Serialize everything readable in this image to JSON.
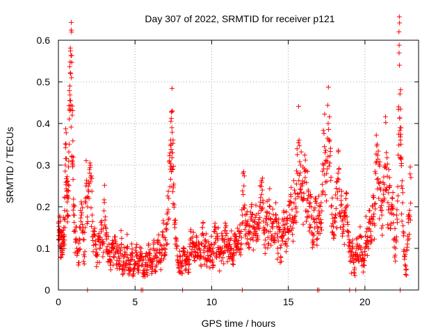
{
  "chart_data": {
    "type": "scatter",
    "title": "Day 307 of 2022, SRMTID for receiver p121",
    "xlabel": "GPS time / hours",
    "ylabel": "SRMTID / TECUs",
    "xlim": [
      0,
      23.5
    ],
    "ylim": [
      0,
      0.6
    ],
    "x_ticks": [
      0,
      5,
      10,
      15,
      20
    ],
    "y_ticks": [
      0,
      0.1,
      0.2,
      0.3,
      0.4,
      0.5,
      0.6
    ],
    "x_tick_labels": [
      "0",
      "5",
      "10",
      "15",
      "20"
    ],
    "y_tick_labels": [
      "0",
      "0.1",
      "0.2",
      "0.3",
      "0.4",
      "0.5",
      "0.6"
    ],
    "grid": true,
    "marker": "plus",
    "color": "#ff0000",
    "series": [
      {
        "name": "SRMTID",
        "note": "dense scatter of ~2000 plus markers sampled every ~30 s; values below are a representative subset read from the plot",
        "points": [
          [
            0.0,
            0.16
          ],
          [
            0.05,
            0.12
          ],
          [
            0.1,
            0.14
          ],
          [
            0.15,
            0.1
          ],
          [
            0.2,
            0.13
          ],
          [
            0.25,
            0.09
          ],
          [
            0.3,
            0.11
          ],
          [
            0.35,
            0.15
          ],
          [
            0.4,
            0.12
          ],
          [
            0.45,
            0.3
          ],
          [
            0.5,
            0.35
          ],
          [
            0.55,
            0.26
          ],
          [
            0.6,
            0.18
          ],
          [
            0.65,
            0.22
          ],
          [
            0.7,
            0.35
          ],
          [
            0.75,
            0.49
          ],
          [
            0.8,
            0.52
          ],
          [
            0.85,
            0.51
          ],
          [
            0.9,
            0.42
          ],
          [
            0.95,
            0.3
          ],
          [
            1.0,
            0.2
          ],
          [
            1.1,
            0.14
          ],
          [
            1.2,
            0.1
          ],
          [
            1.3,
            0.06
          ],
          [
            1.4,
            0.12
          ],
          [
            1.5,
            0.18
          ],
          [
            1.6,
            0.14
          ],
          [
            1.7,
            0.08
          ],
          [
            1.8,
            0.25
          ],
          [
            1.9,
            0.2
          ],
          [
            2.0,
            0.22
          ],
          [
            2.1,
            0.26
          ],
          [
            2.2,
            0.18
          ],
          [
            2.3,
            0.13
          ],
          [
            2.4,
            0.11
          ],
          [
            2.5,
            0.09
          ],
          [
            2.6,
            0.12
          ],
          [
            2.7,
            0.1
          ],
          [
            2.8,
            0.14
          ],
          [
            2.9,
            0.08
          ],
          [
            3.0,
            0.21
          ],
          [
            3.1,
            0.13
          ],
          [
            3.2,
            0.09
          ],
          [
            3.3,
            0.11
          ],
          [
            3.4,
            0.07
          ],
          [
            3.5,
            0.1
          ],
          [
            3.6,
            0.08
          ],
          [
            3.7,
            0.12
          ],
          [
            3.8,
            0.06
          ],
          [
            3.9,
            0.09
          ],
          [
            4.0,
            0.07
          ],
          [
            4.1,
            0.11
          ],
          [
            4.2,
            0.05
          ],
          [
            4.3,
            0.08
          ],
          [
            4.4,
            0.06
          ],
          [
            4.5,
            0.1
          ],
          [
            4.6,
            0.04
          ],
          [
            4.7,
            0.07
          ],
          [
            4.8,
            0.09
          ],
          [
            4.9,
            0.05
          ],
          [
            5.0,
            0.06
          ],
          [
            5.1,
            0.08
          ],
          [
            5.2,
            0.05
          ],
          [
            5.3,
            0.07
          ],
          [
            5.4,
            0.1
          ],
          [
            5.5,
            0.06
          ],
          [
            5.6,
            0.04
          ],
          [
            5.7,
            0.08
          ],
          [
            5.8,
            0.06
          ],
          [
            5.9,
            0.09
          ],
          [
            6.0,
            0.07
          ],
          [
            6.1,
            0.05
          ],
          [
            6.2,
            0.1
          ],
          [
            6.3,
            0.08
          ],
          [
            6.4,
            0.06
          ],
          [
            6.5,
            0.12
          ],
          [
            6.6,
            0.09
          ],
          [
            6.7,
            0.07
          ],
          [
            6.8,
            0.14
          ],
          [
            6.9,
            0.1
          ],
          [
            7.0,
            0.12
          ],
          [
            7.1,
            0.16
          ],
          [
            7.2,
            0.22
          ],
          [
            7.3,
            0.29
          ],
          [
            7.35,
            0.35
          ],
          [
            7.4,
            0.39
          ],
          [
            7.45,
            0.33
          ],
          [
            7.5,
            0.25
          ],
          [
            7.6,
            0.15
          ],
          [
            7.7,
            0.1
          ],
          [
            7.8,
            0.06
          ],
          [
            7.9,
            0.08
          ],
          [
            8.0,
            0.04
          ],
          [
            8.1,
            0.07
          ],
          [
            8.2,
            0.1
          ],
          [
            8.3,
            0.06
          ],
          [
            8.4,
            0.08
          ],
          [
            8.5,
            0.05
          ],
          [
            8.6,
            0.12
          ],
          [
            8.7,
            0.09
          ],
          [
            8.8,
            0.11
          ],
          [
            8.9,
            0.07
          ],
          [
            9.0,
            0.13
          ],
          [
            9.1,
            0.08
          ],
          [
            9.2,
            0.1
          ],
          [
            9.3,
            0.06
          ],
          [
            9.4,
            0.15
          ],
          [
            9.5,
            0.09
          ],
          [
            9.6,
            0.12
          ],
          [
            9.7,
            0.07
          ],
          [
            9.8,
            0.1
          ],
          [
            9.9,
            0.08
          ],
          [
            10.0,
            0.11
          ],
          [
            10.1,
            0.06
          ],
          [
            10.2,
            0.14
          ],
          [
            10.3,
            0.09
          ],
          [
            10.4,
            0.12
          ],
          [
            10.5,
            0.08
          ],
          [
            10.6,
            0.1
          ],
          [
            10.7,
            0.13
          ],
          [
            10.8,
            0.09
          ],
          [
            10.9,
            0.15
          ],
          [
            11.0,
            0.11
          ],
          [
            11.1,
            0.08
          ],
          [
            11.2,
            0.12
          ],
          [
            11.3,
            0.1
          ],
          [
            11.4,
            0.07
          ],
          [
            11.5,
            0.13
          ],
          [
            11.6,
            0.09
          ],
          [
            11.7,
            0.11
          ],
          [
            11.8,
            0.14
          ],
          [
            11.9,
            0.1
          ],
          [
            12.0,
            0.18
          ],
          [
            12.1,
            0.25
          ],
          [
            12.2,
            0.13
          ],
          [
            12.3,
            0.16
          ],
          [
            12.4,
            0.11
          ],
          [
            12.5,
            0.14
          ],
          [
            12.6,
            0.17
          ],
          [
            12.7,
            0.12
          ],
          [
            12.8,
            0.15
          ],
          [
            12.9,
            0.18
          ],
          [
            13.0,
            0.13
          ],
          [
            13.1,
            0.16
          ],
          [
            13.2,
            0.2
          ],
          [
            13.3,
            0.24
          ],
          [
            13.4,
            0.15
          ],
          [
            13.5,
            0.12
          ],
          [
            13.6,
            0.17
          ],
          [
            13.7,
            0.14
          ],
          [
            13.8,
            0.2
          ],
          [
            13.9,
            0.13
          ],
          [
            14.0,
            0.16
          ],
          [
            14.1,
            0.12
          ],
          [
            14.2,
            0.18
          ],
          [
            14.3,
            0.1
          ],
          [
            14.4,
            0.15
          ],
          [
            14.5,
            0.08
          ],
          [
            14.6,
            0.13
          ],
          [
            14.7,
            0.19
          ],
          [
            14.8,
            0.11
          ],
          [
            14.9,
            0.16
          ],
          [
            15.0,
            0.14
          ],
          [
            15.1,
            0.18
          ],
          [
            15.2,
            0.21
          ],
          [
            15.3,
            0.17
          ],
          [
            15.4,
            0.24
          ],
          [
            15.5,
            0.2
          ],
          [
            15.6,
            0.28
          ],
          [
            15.7,
            0.36
          ],
          [
            15.8,
            0.3
          ],
          [
            15.9,
            0.25
          ],
          [
            16.0,
            0.22
          ],
          [
            16.1,
            0.27
          ],
          [
            16.2,
            0.19
          ],
          [
            16.3,
            0.24
          ],
          [
            16.4,
            0.15
          ],
          [
            16.5,
            0.2
          ],
          [
            16.6,
            0.12
          ],
          [
            16.7,
            0.17
          ],
          [
            16.8,
            0.22
          ],
          [
            16.9,
            0.14
          ],
          [
            17.0,
            0.19
          ],
          [
            17.1,
            0.16
          ],
          [
            17.2,
            0.23
          ],
          [
            17.3,
            0.3
          ],
          [
            17.4,
            0.33
          ],
          [
            17.5,
            0.28
          ],
          [
            17.6,
            0.4
          ],
          [
            17.7,
            0.36
          ],
          [
            17.8,
            0.2
          ],
          [
            17.9,
            0.16
          ],
          [
            18.0,
            0.13
          ],
          [
            18.1,
            0.18
          ],
          [
            18.2,
            0.22
          ],
          [
            18.3,
            0.29
          ],
          [
            18.4,
            0.15
          ],
          [
            18.5,
            0.19
          ],
          [
            18.6,
            0.14
          ],
          [
            18.7,
            0.17
          ],
          [
            18.8,
            0.2
          ],
          [
            18.9,
            0.13
          ],
          [
            19.0,
            0.1
          ],
          [
            19.1,
            0.07
          ],
          [
            19.2,
            0.12
          ],
          [
            19.3,
            0.04
          ],
          [
            19.4,
            0.09
          ],
          [
            19.5,
            0.11
          ],
          [
            19.6,
            0.07
          ],
          [
            19.7,
            0.13
          ],
          [
            19.8,
            0.09
          ],
          [
            19.9,
            0.06
          ],
          [
            20.0,
            0.1
          ],
          [
            20.1,
            0.14
          ],
          [
            20.2,
            0.11
          ],
          [
            20.3,
            0.17
          ],
          [
            20.4,
            0.13
          ],
          [
            20.5,
            0.2
          ],
          [
            20.6,
            0.16
          ],
          [
            20.7,
            0.28
          ],
          [
            20.8,
            0.35
          ],
          [
            20.9,
            0.22
          ],
          [
            21.0,
            0.26
          ],
          [
            21.1,
            0.18
          ],
          [
            21.2,
            0.24
          ],
          [
            21.3,
            0.3
          ],
          [
            21.4,
            0.33
          ],
          [
            21.5,
            0.21
          ],
          [
            21.6,
            0.27
          ],
          [
            21.7,
            0.16
          ],
          [
            21.8,
            0.22
          ],
          [
            21.9,
            0.12
          ],
          [
            22.0,
            0.1
          ],
          [
            22.1,
            0.17
          ],
          [
            22.2,
            0.44
          ],
          [
            22.25,
            0.54
          ],
          [
            22.3,
            0.39
          ],
          [
            22.35,
            0.35
          ],
          [
            22.4,
            0.25
          ],
          [
            22.5,
            0.14
          ],
          [
            22.6,
            0.08
          ],
          [
            22.7,
            0.05
          ],
          [
            22.8,
            0.12
          ],
          [
            22.9,
            0.18
          ],
          [
            23.0,
            0.27
          ]
        ]
      }
    ],
    "zero_markers_x": [
      1.9,
      5.4,
      5.5,
      8.1,
      12.0,
      16.9,
      17.0,
      19.0,
      19.4,
      22.3
    ]
  }
}
